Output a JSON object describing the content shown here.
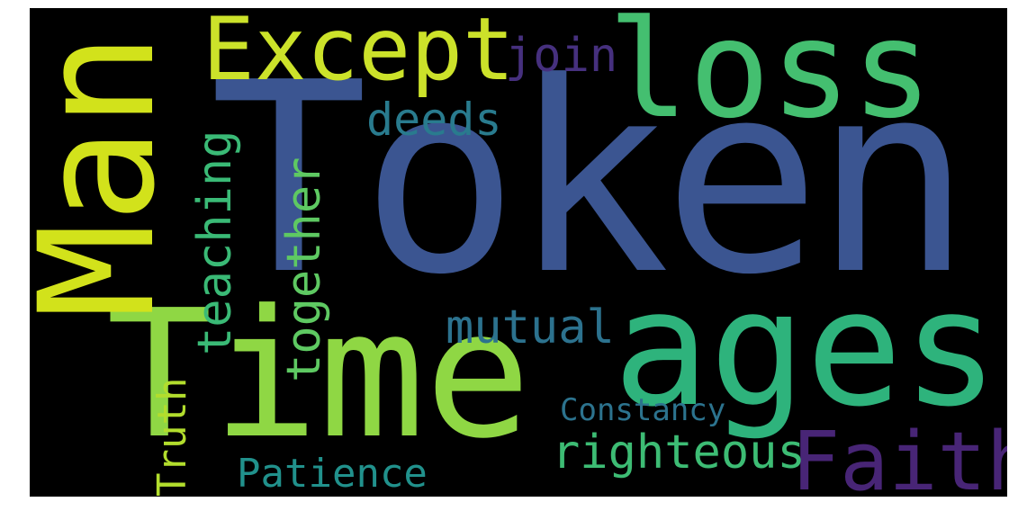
{
  "words": [
    {
      "key": "token",
      "text": "Token",
      "color": "#3b5591"
    },
    {
      "key": "time",
      "text": "Time",
      "color": "#8fd744"
    },
    {
      "key": "ages",
      "text": "ages",
      "color": "#2eb37c"
    },
    {
      "key": "man",
      "text": "Man",
      "color": "#d2e21b"
    },
    {
      "key": "loss",
      "text": "loss",
      "color": "#44bf70"
    },
    {
      "key": "except",
      "text": "Except",
      "color": "#cce22a"
    },
    {
      "key": "faith",
      "text": "Faith",
      "color": "#482576"
    },
    {
      "key": "join",
      "text": "join",
      "color": "#46307e"
    },
    {
      "key": "deeds",
      "text": "deeds",
      "color": "#297b8e"
    },
    {
      "key": "teaching",
      "text": "teaching",
      "color": "#3aba76"
    },
    {
      "key": "together",
      "text": "together",
      "color": "#5ec962"
    },
    {
      "key": "mutual",
      "text": "mutual",
      "color": "#2c728e"
    },
    {
      "key": "truth",
      "text": "Truth",
      "color": "#b2dd2d"
    },
    {
      "key": "constancy",
      "text": "Constancy",
      "color": "#2c738e"
    },
    {
      "key": "righteous",
      "text": "righteous",
      "color": "#3dbc74"
    },
    {
      "key": "patience",
      "text": "Patience",
      "color": "#21918c"
    }
  ]
}
